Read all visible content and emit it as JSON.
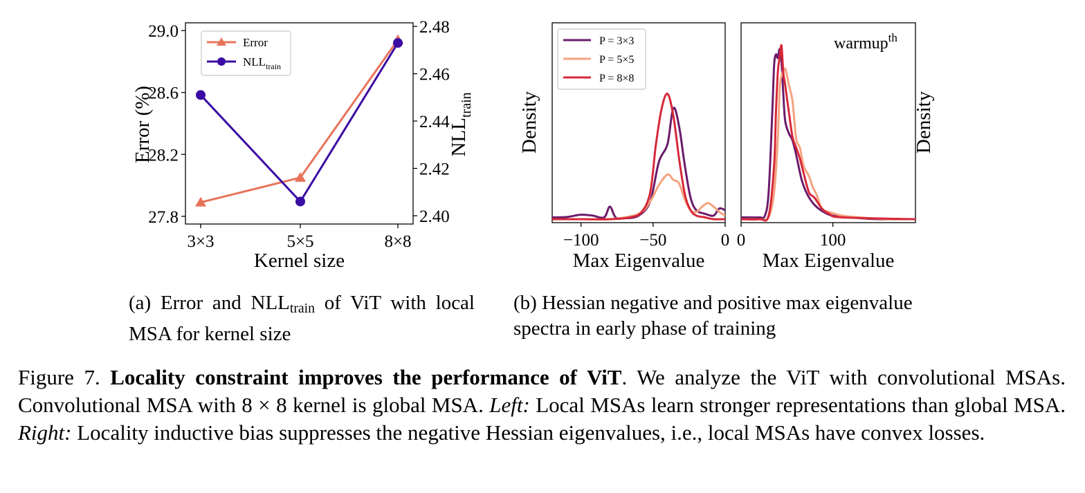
{
  "chart_data": [
    {
      "type": "line",
      "xlabel": "Kernel size",
      "ylabel_left": "Error (%)",
      "ylabel_right": {
        "base": "NLL",
        "sub": "train"
      },
      "categories": [
        "3×3",
        "5×5",
        "8×8"
      ],
      "left_ylim": [
        27.75,
        29.05
      ],
      "left_yticks": [
        "27.8",
        "28.2",
        "28.6",
        "29.0"
      ],
      "right_ylim": [
        2.3965,
        2.4815
      ],
      "right_yticks": [
        "2.40",
        "2.42",
        "2.44",
        "2.46",
        "2.48"
      ],
      "legend_position": "upper-left",
      "series": [
        {
          "name": "Error",
          "axis": "left",
          "marker": "triangle",
          "color": "#E8735A",
          "values": [
            27.89,
            28.05,
            28.94
          ]
        },
        {
          "name": "NLL",
          "name_sub": "train",
          "axis": "right",
          "marker": "circle",
          "color": "#3A0CA3",
          "values": [
            2.451,
            2.406,
            2.473
          ]
        }
      ]
    },
    {
      "type": "line",
      "xlabel": "Max Eigenvalue",
      "ylabel": "Density",
      "xlim": [
        -120,
        0
      ],
      "xticks": [
        "−100",
        "−50",
        "0"
      ],
      "legend_position": "upper-left",
      "series": [
        {
          "name": "P = 3×3",
          "color": "#6A1B6A",
          "points": [
            [
              -120,
              0.01
            ],
            [
              -110,
              0.012
            ],
            [
              -100,
              0.025
            ],
            [
              -92,
              0.02
            ],
            [
              -84,
              0.01
            ],
            [
              -80,
              0.07
            ],
            [
              -76,
              0.01
            ],
            [
              -70,
              0.005
            ],
            [
              -60,
              0.02
            ],
            [
              -52,
              0.1
            ],
            [
              -46,
              0.32
            ],
            [
              -40,
              0.42
            ],
            [
              -36,
              0.62
            ],
            [
              -32,
              0.52
            ],
            [
              -28,
              0.3
            ],
            [
              -24,
              0.12
            ],
            [
              -20,
              0.05
            ],
            [
              -14,
              0.03
            ],
            [
              -8,
              0.02
            ],
            [
              -4,
              0.06
            ],
            [
              0,
              0.05
            ]
          ]
        },
        {
          "name": "P = 5×5",
          "color": "#F4A37E",
          "points": [
            [
              -120,
              0.0
            ],
            [
              -100,
              0.0
            ],
            [
              -80,
              0.0
            ],
            [
              -60,
              0.03
            ],
            [
              -52,
              0.1
            ],
            [
              -46,
              0.19
            ],
            [
              -40,
              0.25
            ],
            [
              -36,
              0.22
            ],
            [
              -32,
              0.2
            ],
            [
              -28,
              0.11
            ],
            [
              -24,
              0.05
            ],
            [
              -20,
              0.04
            ],
            [
              -16,
              0.07
            ],
            [
              -12,
              0.09
            ],
            [
              -8,
              0.07
            ],
            [
              -4,
              0.04
            ],
            [
              0,
              0.02
            ]
          ]
        },
        {
          "name": "P = 8×8",
          "color": "#D62839",
          "points": [
            [
              -120,
              0.0
            ],
            [
              -100,
              0.0
            ],
            [
              -80,
              0.0
            ],
            [
              -66,
              0.01
            ],
            [
              -58,
              0.04
            ],
            [
              -52,
              0.15
            ],
            [
              -48,
              0.42
            ],
            [
              -44,
              0.62
            ],
            [
              -40,
              0.7
            ],
            [
              -36,
              0.58
            ],
            [
              -32,
              0.34
            ],
            [
              -28,
              0.14
            ],
            [
              -24,
              0.05
            ],
            [
              -20,
              0.02
            ],
            [
              -14,
              0.01
            ],
            [
              -8,
              0.0
            ],
            [
              0,
              0.0
            ]
          ]
        }
      ]
    },
    {
      "type": "line",
      "xlabel": "Max Eigenvalue",
      "ylabel": "Density",
      "xlim": [
        0,
        190
      ],
      "xticks": [
        "0",
        "100"
      ],
      "annotation": {
        "base": "warmup",
        "sup": "th"
      },
      "series": [
        {
          "name": "P = 3×3",
          "color": "#6A1B6A",
          "points": [
            [
              0,
              0.01
            ],
            [
              10,
              0.01
            ],
            [
              20,
              0.01
            ],
            [
              26,
              0.02
            ],
            [
              30,
              0.15
            ],
            [
              34,
              0.6
            ],
            [
              36,
              0.86
            ],
            [
              38,
              0.92
            ],
            [
              40,
              0.9
            ],
            [
              42,
              0.95
            ],
            [
              44,
              0.88
            ],
            [
              46,
              0.7
            ],
            [
              48,
              0.55
            ],
            [
              52,
              0.48
            ],
            [
              56,
              0.44
            ],
            [
              60,
              0.36
            ],
            [
              66,
              0.22
            ],
            [
              72,
              0.14
            ],
            [
              80,
              0.08
            ],
            [
              90,
              0.04
            ],
            [
              100,
              0.02
            ],
            [
              120,
              0.01
            ],
            [
              150,
              0.0
            ],
            [
              190,
              0.0
            ]
          ]
        },
        {
          "name": "P = 5×5",
          "color": "#F4A37E",
          "points": [
            [
              0,
              0.0
            ],
            [
              20,
              0.0
            ],
            [
              30,
              0.01
            ],
            [
              36,
              0.15
            ],
            [
              40,
              0.45
            ],
            [
              42,
              0.72
            ],
            [
              44,
              0.8
            ],
            [
              48,
              0.84
            ],
            [
              52,
              0.75
            ],
            [
              56,
              0.66
            ],
            [
              60,
              0.45
            ],
            [
              64,
              0.4
            ],
            [
              68,
              0.3
            ],
            [
              74,
              0.24
            ],
            [
              78,
              0.18
            ],
            [
              82,
              0.14
            ],
            [
              88,
              0.06
            ],
            [
              96,
              0.04
            ],
            [
              110,
              0.02
            ],
            [
              130,
              0.01
            ],
            [
              160,
              0.0
            ],
            [
              190,
              0.0
            ]
          ]
        },
        {
          "name": "P = 8×8",
          "color": "#D62839",
          "points": [
            [
              0,
              0.0
            ],
            [
              20,
              0.0
            ],
            [
              30,
              0.02
            ],
            [
              36,
              0.3
            ],
            [
              38,
              0.6
            ],
            [
              40,
              0.82
            ],
            [
              42,
              0.9
            ],
            [
              44,
              0.97
            ],
            [
              46,
              0.82
            ],
            [
              48,
              0.75
            ],
            [
              52,
              0.6
            ],
            [
              56,
              0.46
            ],
            [
              60,
              0.4
            ],
            [
              64,
              0.34
            ],
            [
              68,
              0.26
            ],
            [
              74,
              0.15
            ],
            [
              80,
              0.12
            ],
            [
              88,
              0.06
            ],
            [
              96,
              0.03
            ],
            [
              110,
              0.01
            ],
            [
              190,
              0.0
            ]
          ]
        }
      ]
    }
  ],
  "subcaptions": {
    "a": {
      "pre": "(a) Error and NLL",
      "sub": "train",
      "post": " of ViT with local MSA for kernel size"
    },
    "b": {
      "text": "(b) Hessian negative and positive max eigenvalue spectra in early phase of training"
    }
  },
  "caption": {
    "label": "Figure 7. ",
    "bold": "Locality constraint improves the performance of ViT",
    "text1": ". We analyze the ViT with convolutional MSAs. Convolutional MSA with ",
    "math": "8 × 8",
    "text2": " kernel is global MSA. ",
    "left_label": "Left:",
    "text3": "  Local MSAs learn stronger representations than global MSA. ",
    "right_label": "Right:",
    "text4": "  Locality inductive bias suppresses the negative Hessian eigenvalues, i.e., local MSAs have convex losses."
  }
}
